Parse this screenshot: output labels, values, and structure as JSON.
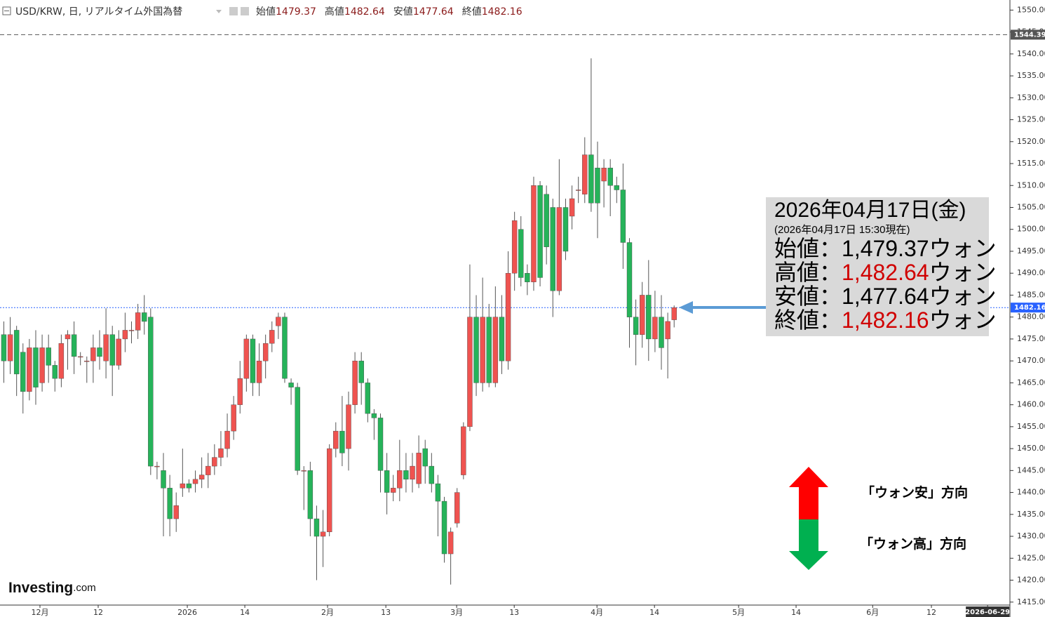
{
  "chart_data": {
    "type": "candlestick",
    "header": {
      "title": "USD/KRW, 日, リアルタイム外国為替",
      "legend": [
        {
          "label": "始値",
          "value": 1479.37
        },
        {
          "label": "高値",
          "value": 1482.64
        },
        {
          "label": "安値",
          "value": 1477.64
        },
        {
          "label": "終値",
          "value": 1482.16
        }
      ]
    },
    "up_color": "#ef5350",
    "down_color": "#26b35a",
    "open": [
      1476,
      1470,
      1477,
      1472,
      1463,
      1473,
      1465,
      1473,
      1469,
      1466,
      1475,
      1476,
      1471,
      1470,
      1470,
      1473,
      1470,
      1476,
      1469,
      1475,
      1477,
      1477,
      1481,
      1480,
      1446,
      1445,
      1441,
      1434,
      1441,
      1442,
      1442,
      1443,
      1444,
      1446,
      1448,
      1450,
      1454,
      1460,
      1466,
      1475,
      1465,
      1470,
      1474,
      1478,
      1480,
      1465,
      1464,
      1445,
      1445,
      1434,
      1430,
      1431,
      1450,
      1454,
      1450,
      1460,
      1470,
      1465,
      1458,
      1457,
      1445,
      1440,
      1441,
      1445,
      1443,
      1442,
      1450,
      1446,
      1442,
      1438,
      1426,
      1433,
      1444,
      1455,
      1480,
      1465,
      1480,
      1465,
      1480,
      1470,
      1490,
      1500,
      1490,
      1488,
      1510,
      1508,
      1505,
      1486,
      1505,
      1503,
      1509,
      1508,
      1517,
      1514,
      1511,
      1514,
      1510,
      1509,
      1497,
      1480,
      1476,
      1485,
      1475,
      1480,
      1475,
      1479.37
    ],
    "high": [
      1479,
      1480,
      1478,
      1474,
      1475,
      1477,
      1476,
      1476,
      1470,
      1476,
      1477,
      1479,
      1472,
      1471,
      1476,
      1477,
      1482,
      1478,
      1477,
      1481,
      1479,
      1483,
      1485,
      1482,
      1447,
      1449,
      1444,
      1440,
      1450,
      1443,
      1445,
      1448,
      1449,
      1451,
      1454,
      1458,
      1462,
      1470,
      1476,
      1476,
      1474,
      1476,
      1479,
      1481,
      1481,
      1466,
      1465,
      1446,
      1447,
      1437,
      1436,
      1451,
      1456,
      1462,
      1463,
      1472,
      1472,
      1466,
      1459,
      1458,
      1449,
      1444,
      1452,
      1449,
      1449,
      1453,
      1452,
      1449,
      1444,
      1439,
      1432,
      1441,
      1456,
      1492,
      1485,
      1489,
      1483,
      1487,
      1485,
      1495,
      1504,
      1503,
      1492,
      1512,
      1511,
      1510,
      1507,
      1516,
      1507,
      1510,
      1512,
      1521,
      1539,
      1520,
      1516,
      1516,
      1512,
      1515,
      1498,
      1484,
      1488,
      1493,
      1486,
      1485,
      1481,
      1482.64
    ],
    "low": [
      1465,
      1467,
      1462,
      1458,
      1461,
      1460,
      1463,
      1465,
      1463,
      1464,
      1468,
      1467,
      1469,
      1465,
      1465,
      1468,
      1466,
      1462,
      1468,
      1472,
      1474,
      1475,
      1476,
      1444,
      1443,
      1430,
      1430,
      1431,
      1439,
      1440,
      1440,
      1441,
      1441,
      1444,
      1446,
      1448,
      1452,
      1458,
      1463,
      1462,
      1462,
      1466,
      1472,
      1475,
      1465,
      1460,
      1444,
      1436,
      1430,
      1420,
      1423,
      1430,
      1448,
      1446,
      1445,
      1458,
      1460,
      1456,
      1452,
      1440,
      1435,
      1438,
      1438,
      1440,
      1440,
      1441,
      1442,
      1440,
      1430,
      1424,
      1419,
      1432,
      1443,
      1454,
      1462,
      1463,
      1464,
      1464,
      1467,
      1468,
      1486,
      1487,
      1485,
      1486,
      1487,
      1492,
      1480,
      1485,
      1493,
      1500,
      1506,
      1506,
      1504,
      1498,
      1505,
      1503,
      1506,
      1491,
      1473,
      1469,
      1473,
      1470,
      1472,
      1468,
      1466,
      1477.64
    ],
    "close": [
      1470,
      1476,
      1467,
      1463,
      1473,
      1464,
      1473,
      1469,
      1466,
      1474,
      1476,
      1471,
      1471,
      1470,
      1473,
      1471,
      1476,
      1469,
      1475,
      1477,
      1477,
      1481,
      1479,
      1446,
      1446,
      1441,
      1434,
      1437,
      1442,
      1441,
      1443,
      1444,
      1446,
      1448,
      1450,
      1454,
      1460,
      1466,
      1475,
      1465,
      1470,
      1474,
      1477,
      1480,
      1466,
      1464,
      1445,
      1445,
      1434,
      1430,
      1431,
      1450,
      1454,
      1449,
      1460,
      1470,
      1465,
      1458,
      1457,
      1445,
      1440,
      1441,
      1445,
      1443,
      1446,
      1449,
      1446,
      1442,
      1438,
      1426,
      1431,
      1440,
      1455,
      1480,
      1465,
      1480,
      1465,
      1480,
      1470,
      1490,
      1502,
      1489,
      1488,
      1510,
      1489,
      1496,
      1486,
      1505,
      1495,
      1507,
      1509,
      1517,
      1506,
      1506,
      1514,
      1510,
      1509,
      1497,
      1480,
      1476,
      1485,
      1475,
      1480,
      1473,
      1479,
      1482.16
    ],
    "xlim": [
      -0.6,
      157.6
    ],
    "xticks": [
      {
        "value": 5.66,
        "label": "12月"
      },
      {
        "value": 14.78,
        "label": "12"
      },
      {
        "value": 28.74,
        "label": "2026"
      },
      {
        "value": 37.75,
        "label": "14"
      },
      {
        "value": 50.71,
        "label": "2月"
      },
      {
        "value": 59.84,
        "label": "13"
      },
      {
        "value": 70.93,
        "label": "3月"
      },
      {
        "value": 79.95,
        "label": "13"
      },
      {
        "value": 92.91,
        "label": "4月"
      },
      {
        "value": 101.92,
        "label": "14"
      },
      {
        "value": 115.1,
        "label": "5月"
      },
      {
        "value": 124.1,
        "label": "14"
      },
      {
        "value": 136.1,
        "label": "6月"
      },
      {
        "value": 145.3,
        "label": "12"
      },
      {
        "value": 154.1,
        "label": "2026-06-29"
      }
    ],
    "ylim": [
      1411.6,
      1552.3
    ],
    "yticks": [
      {
        "value": 1415,
        "label": "1415.00"
      },
      {
        "value": 1420,
        "label": "1420.00"
      },
      {
        "value": 1425,
        "label": "1425.00"
      },
      {
        "value": 1430,
        "label": "1430.00"
      },
      {
        "value": 1435,
        "label": "1435.00"
      },
      {
        "value": 1440,
        "label": "1440.00"
      },
      {
        "value": 1445,
        "label": "1445.00"
      },
      {
        "value": 1450,
        "label": "1450.00"
      },
      {
        "value": 1455,
        "label": "1455.00"
      },
      {
        "value": 1460,
        "label": "1460.00"
      },
      {
        "value": 1465,
        "label": "1465.00"
      },
      {
        "value": 1470,
        "label": "1470.00"
      },
      {
        "value": 1475,
        "label": "1475.00"
      },
      {
        "value": 1480,
        "label": "1480.00"
      },
      {
        "value": 1485,
        "label": "1485.00"
      },
      {
        "value": 1490,
        "label": "1490.00"
      },
      {
        "value": 1495,
        "label": "1495.00"
      },
      {
        "value": 1500,
        "label": "1500.00"
      },
      {
        "value": 1505,
        "label": "1505.00"
      },
      {
        "value": 1510,
        "label": "1510.00"
      },
      {
        "value": 1515,
        "label": "1515.00"
      },
      {
        "value": 1520,
        "label": "1520.00"
      },
      {
        "value": 1525,
        "label": "1525.00"
      },
      {
        "value": 1530,
        "label": "1530.00"
      },
      {
        "value": 1535,
        "label": "1535.00"
      },
      {
        "value": 1540,
        "label": "1540.00"
      },
      {
        "value": 1545,
        "label": "1545.00"
      },
      {
        "value": 1550,
        "label": "1550.00"
      }
    ],
    "price_lines": [
      {
        "value": 1544.39,
        "color": "#555555"
      },
      {
        "value": 1482.16,
        "color": "#2962ff"
      }
    ],
    "info": {
      "date": "2026年04月17日(金)",
      "note": "(2026年04月17日 15:30現在)",
      "rows": [
        {
          "label": "始値：",
          "value": "1,479.37",
          "unit": "ウォン",
          "color": "#000000"
        },
        {
          "label": "高値：",
          "value": "1,482.64",
          "unit": "ウォン",
          "color": "#d00000"
        },
        {
          "label": "安値：",
          "value": "1,477.64",
          "unit": "ウォン",
          "color": "#000000"
        },
        {
          "label": "終値：",
          "value": "1,482.16",
          "unit": "ウォン",
          "color": "#d00000"
        }
      ]
    },
    "arrow_labels": [
      "「ウォン安」方向",
      "「ウォン高」方向"
    ],
    "logo": {
      "name": "Investing",
      "suffix": ".com"
    }
  }
}
